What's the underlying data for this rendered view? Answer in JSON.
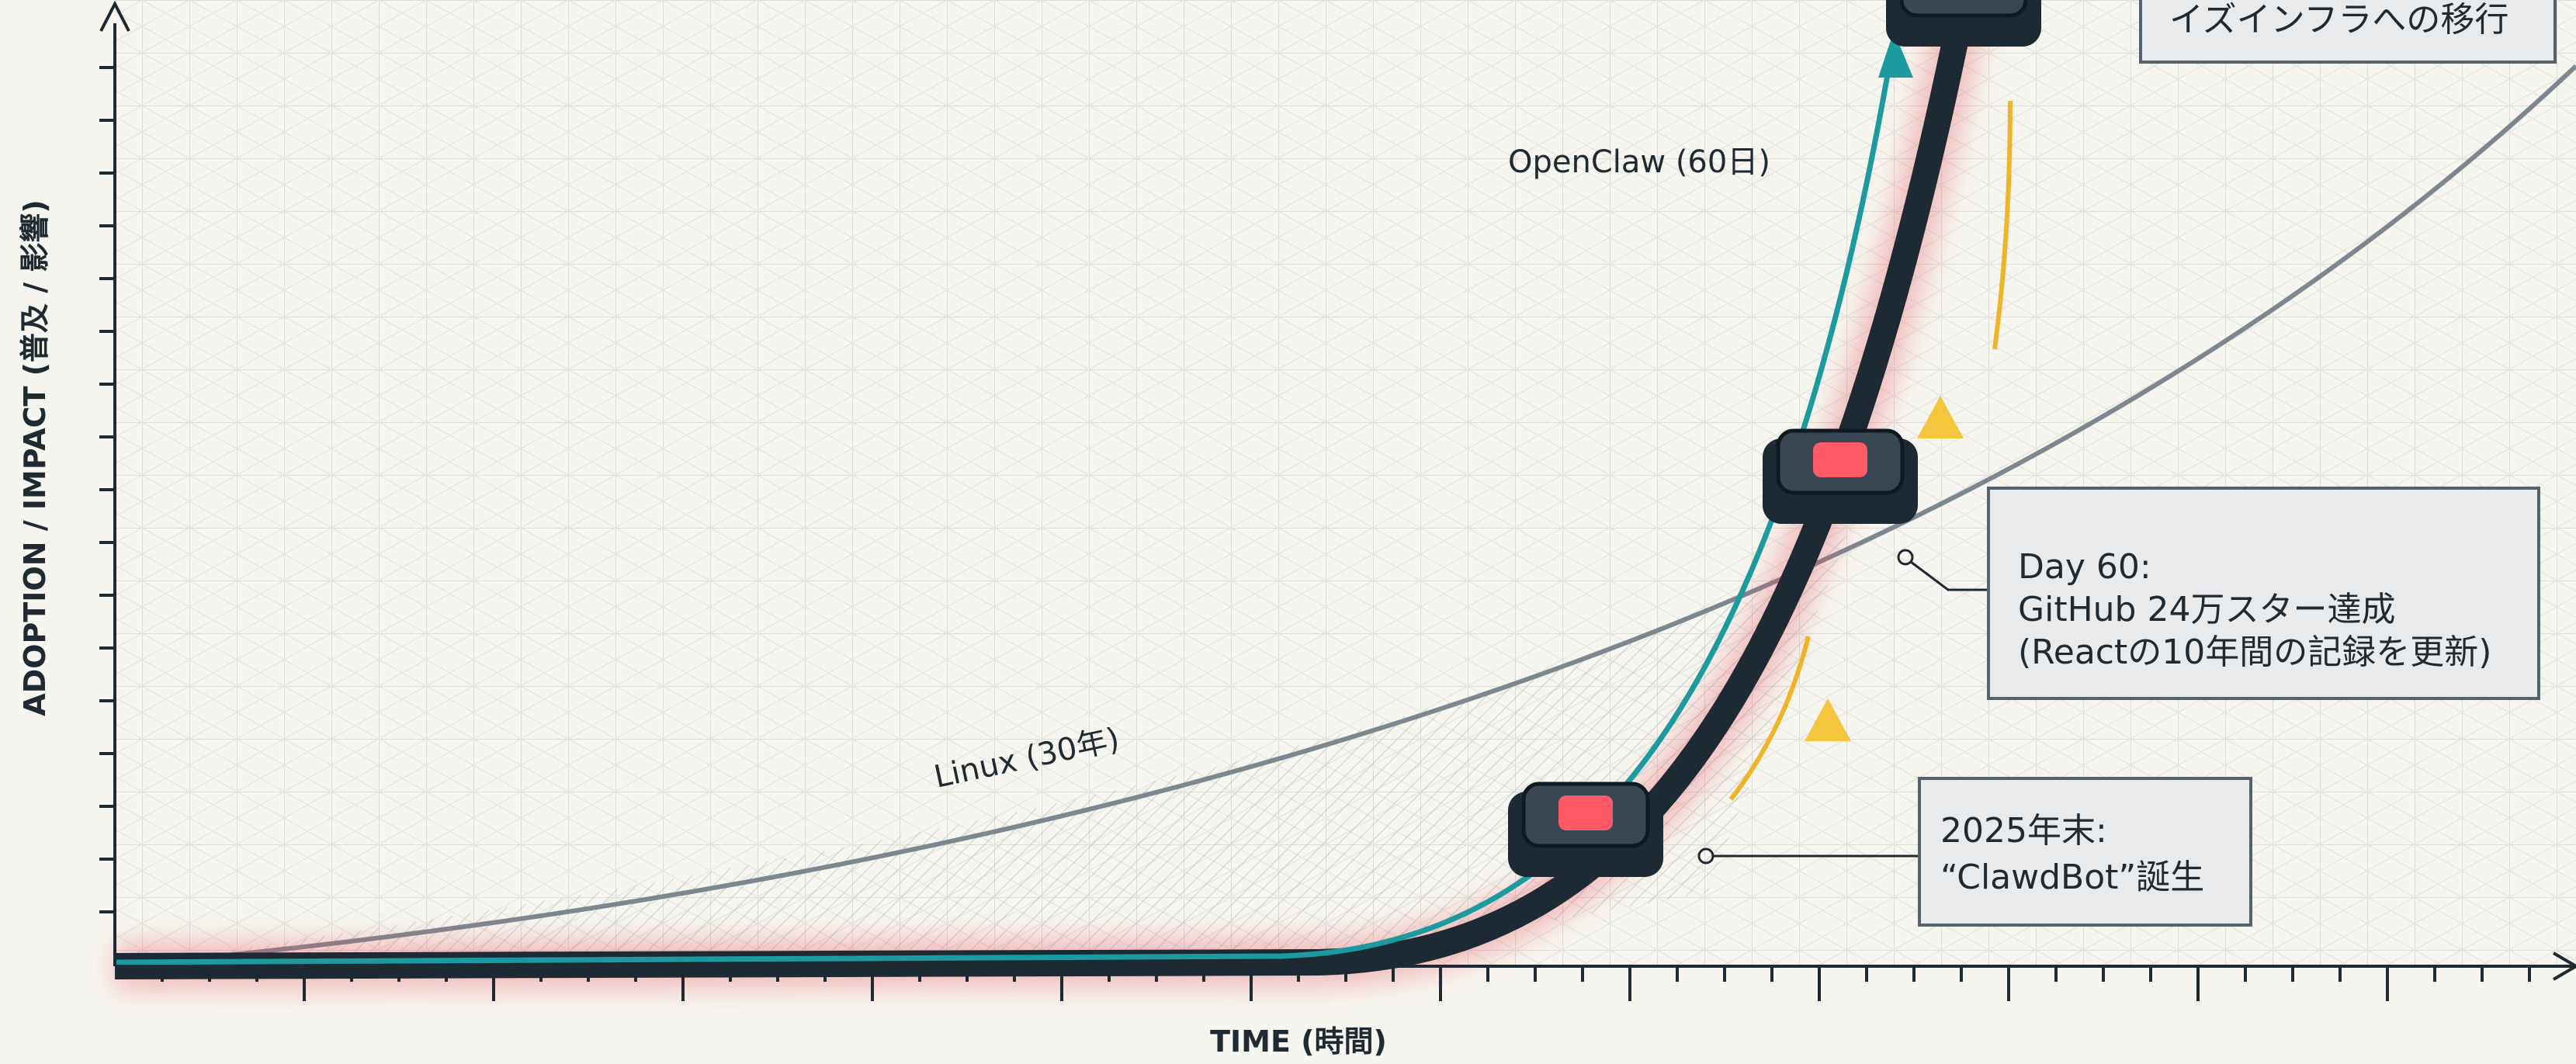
{
  "axes": {
    "y_label": "ADOPTION / IMPACT (普及 / 影響)",
    "x_label": "TIME (時間)"
  },
  "curves": [
    {
      "label": "OpenClaw (60日)"
    },
    {
      "label": "Linux (30年)"
    }
  ],
  "callouts": [
    {
      "lines": [
        "イズインフラへの移行"
      ]
    },
    {
      "lines": [
        "Day 60:",
        "GitHub 24万スター達成",
        "(Reactの10年間の記録を更新)"
      ]
    },
    {
      "lines": [
        "2025年末:",
        "“ClawdBot”誕生"
      ]
    }
  ]
}
